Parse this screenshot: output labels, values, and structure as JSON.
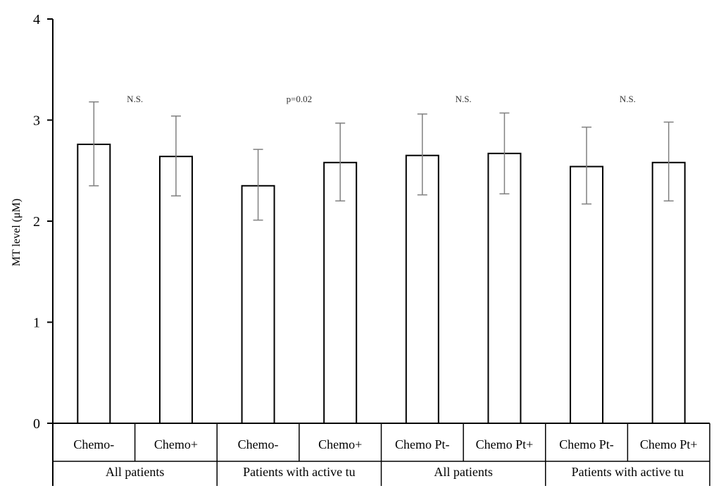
{
  "chart_data": {
    "type": "bar",
    "title": "",
    "xlabel": "",
    "ylabel": "MT level (μM)",
    "ylim": [
      0,
      4
    ],
    "yticks": [
      "0",
      "1",
      "2",
      "3",
      "4"
    ],
    "grid": false,
    "bar_fill": "#ffffff",
    "bar_stroke": "#000000",
    "errorbar_color": "#808080",
    "categories": [
      "Chemo-",
      "Chemo+",
      "Chemo-",
      "Chemo+",
      "Chemo Pt-",
      "Chemo Pt+",
      "Chemo Pt-",
      "Chemo Pt+"
    ],
    "values": [
      2.76,
      2.64,
      2.35,
      2.58,
      2.65,
      2.67,
      2.54,
      2.58
    ],
    "error_upper": [
      3.18,
      3.04,
      2.71,
      2.97,
      3.06,
      3.07,
      2.93,
      2.98
    ],
    "error_lower": [
      2.35,
      2.25,
      2.01,
      2.2,
      2.26,
      2.27,
      2.17,
      2.2
    ],
    "groups": [
      {
        "label": "All patients",
        "span": [
          0,
          1
        ]
      },
      {
        "label": "Patients with active tu",
        "span": [
          2,
          3
        ]
      },
      {
        "label": "All patients",
        "span": [
          4,
          5
        ]
      },
      {
        "label": "Patients with active tu",
        "span": [
          6,
          7
        ]
      }
    ],
    "annotations": [
      "N.S.",
      "p=0.02",
      "N.S.",
      "N.S."
    ]
  }
}
